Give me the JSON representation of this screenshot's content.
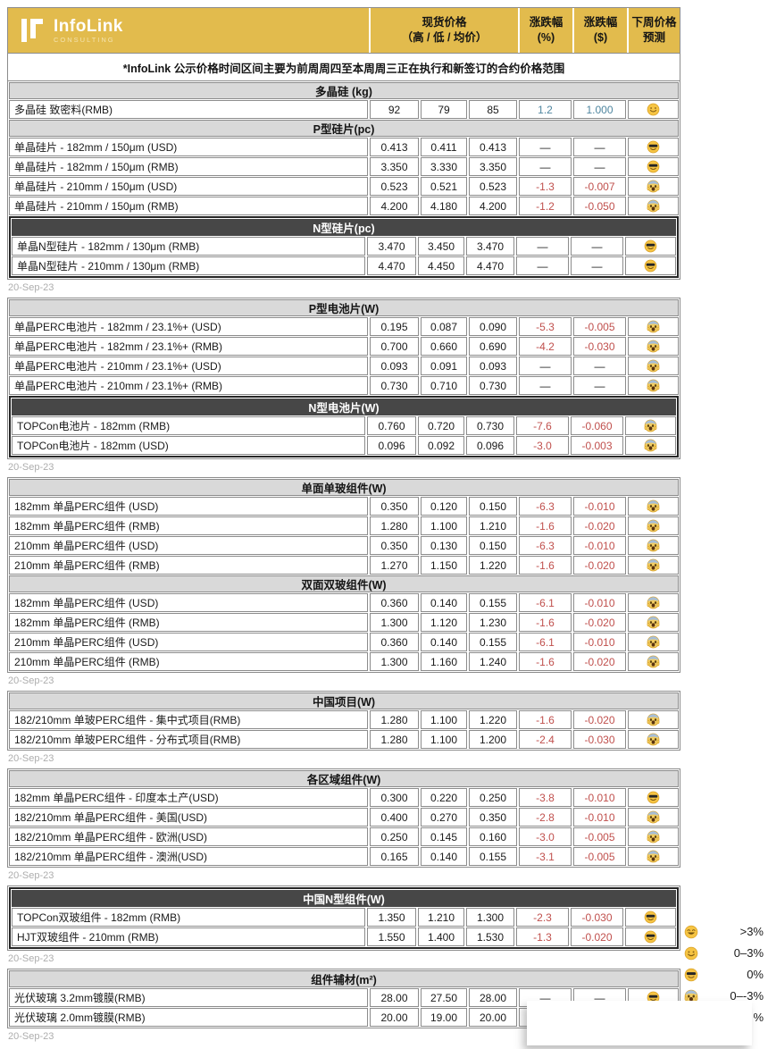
{
  "brand": {
    "name": "InfoLink",
    "subtitle": "CONSULTING"
  },
  "columns": {
    "spot_title": "现货价格",
    "spot_sub": "（高 / 低 / 均价）",
    "pct_title": "涨跌幅",
    "pct_sub": "(%)",
    "usd_title": "涨跌幅",
    "usd_sub": "($)",
    "forecast_title": "下周价格",
    "forecast_sub": "预测"
  },
  "note": "*InfoLink 公示价格时间区间主要为前周周四至本周周三正在执行和新签订的合约价格范围",
  "colors": {
    "accent_yellow": "#E2BB4D",
    "section_light": "#D9D9D9",
    "section_dark": "#474747",
    "up_blue": "#4F86A0",
    "down_red": "#C0504D",
    "border_gray": "#8C8C8C"
  },
  "blocks": [
    {
      "date": "20-Sep-23",
      "sections": [
        {
          "title": "多晶硅 (kg)",
          "style": "light",
          "rows": [
            {
              "name": "多晶硅 致密料(RMB)",
              "high": "92",
              "low": "79",
              "avg": "85",
              "pct": "1.2",
              "usd": "1.000",
              "trend": "up",
              "forecast": "smile"
            }
          ]
        },
        {
          "title": "P型硅片(pc)",
          "style": "light",
          "rows": [
            {
              "name": "单晶硅片 - 182mm / 150μm (USD)",
              "high": "0.413",
              "low": "0.411",
              "avg": "0.413",
              "pct": "—",
              "usd": "—",
              "trend": "flat",
              "forecast": "cool"
            },
            {
              "name": "单晶硅片 - 182mm / 150μm (RMB)",
              "high": "3.350",
              "low": "3.330",
              "avg": "3.350",
              "pct": "—",
              "usd": "—",
              "trend": "flat",
              "forecast": "cool"
            },
            {
              "name": "单晶硅片 - 210mm / 150μm (USD)",
              "high": "0.523",
              "low": "0.521",
              "avg": "0.523",
              "pct": "-1.3",
              "usd": "-0.007",
              "trend": "down",
              "forecast": "scream"
            },
            {
              "name": "单晶硅片 - 210mm / 150μm (RMB)",
              "high": "4.200",
              "low": "4.180",
              "avg": "4.200",
              "pct": "-1.2",
              "usd": "-0.050",
              "trend": "down",
              "forecast": "scream"
            }
          ]
        },
        {
          "title": "N型硅片(pc)",
          "style": "dark",
          "rows": [
            {
              "name": "单晶N型硅片 - 182mm / 130μm (RMB)",
              "high": "3.470",
              "low": "3.450",
              "avg": "3.470",
              "pct": "—",
              "usd": "—",
              "trend": "flat",
              "forecast": "cool"
            },
            {
              "name": "单晶N型硅片 - 210mm / 130μm (RMB)",
              "high": "4.470",
              "low": "4.450",
              "avg": "4.470",
              "pct": "—",
              "usd": "—",
              "trend": "flat",
              "forecast": "cool"
            }
          ]
        }
      ]
    },
    {
      "date": "20-Sep-23",
      "sections": [
        {
          "title": "P型电池片(W)",
          "style": "light",
          "rows": [
            {
              "name": "单晶PERC电池片 - 182mm / 23.1%+ (USD)",
              "high": "0.195",
              "low": "0.087",
              "avg": "0.090",
              "pct": "-5.3",
              "usd": "-0.005",
              "trend": "down",
              "forecast": "scream"
            },
            {
              "name": "单晶PERC电池片 - 182mm / 23.1%+ (RMB)",
              "high": "0.700",
              "low": "0.660",
              "avg": "0.690",
              "pct": "-4.2",
              "usd": "-0.030",
              "trend": "down",
              "forecast": "scream"
            },
            {
              "name": "单晶PERC电池片 - 210mm / 23.1%+ (USD)",
              "high": "0.093",
              "low": "0.091",
              "avg": "0.093",
              "pct": "—",
              "usd": "—",
              "trend": "flat",
              "forecast": "scream"
            },
            {
              "name": "单晶PERC电池片 - 210mm / 23.1%+ (RMB)",
              "high": "0.730",
              "low": "0.710",
              "avg": "0.730",
              "pct": "—",
              "usd": "—",
              "trend": "flat",
              "forecast": "scream"
            }
          ]
        },
        {
          "title": "N型电池片(W)",
          "style": "dark",
          "rows": [
            {
              "name": "TOPCon电池片 - 182mm (RMB)",
              "high": "0.760",
              "low": "0.720",
              "avg": "0.730",
              "pct": "-7.6",
              "usd": "-0.060",
              "trend": "down",
              "forecast": "scream"
            },
            {
              "name": "TOPCon电池片 - 182mm (USD)",
              "high": "0.096",
              "low": "0.092",
              "avg": "0.096",
              "pct": "-3.0",
              "usd": "-0.003",
              "trend": "down",
              "forecast": "scream"
            }
          ]
        }
      ]
    },
    {
      "date": "20-Sep-23",
      "sections": [
        {
          "title": "单面单玻组件(W)",
          "style": "light",
          "rows": [
            {
              "name": "182mm 单晶PERC组件 (USD)",
              "high": "0.350",
              "low": "0.120",
              "avg": "0.150",
              "pct": "-6.3",
              "usd": "-0.010",
              "trend": "down",
              "forecast": "scream"
            },
            {
              "name": "182mm 单晶PERC组件 (RMB)",
              "high": "1.280",
              "low": "1.100",
              "avg": "1.210",
              "pct": "-1.6",
              "usd": "-0.020",
              "trend": "down",
              "forecast": "scream"
            },
            {
              "name": "210mm 单晶PERC组件 (USD)",
              "high": "0.350",
              "low": "0.130",
              "avg": "0.150",
              "pct": "-6.3",
              "usd": "-0.010",
              "trend": "down",
              "forecast": "scream"
            },
            {
              "name": "210mm 单晶PERC组件 (RMB)",
              "high": "1.270",
              "low": "1.150",
              "avg": "1.220",
              "pct": "-1.6",
              "usd": "-0.020",
              "trend": "down",
              "forecast": "scream"
            }
          ]
        },
        {
          "title": "双面双玻组件(W)",
          "style": "light",
          "rows": [
            {
              "name": "182mm 单晶PERC组件 (USD)",
              "high": "0.360",
              "low": "0.140",
              "avg": "0.155",
              "pct": "-6.1",
              "usd": "-0.010",
              "trend": "down",
              "forecast": "scream"
            },
            {
              "name": "182mm 单晶PERC组件 (RMB)",
              "high": "1.300",
              "low": "1.120",
              "avg": "1.230",
              "pct": "-1.6",
              "usd": "-0.020",
              "trend": "down",
              "forecast": "scream"
            },
            {
              "name": "210mm 单晶PERC组件 (USD)",
              "high": "0.360",
              "low": "0.140",
              "avg": "0.155",
              "pct": "-6.1",
              "usd": "-0.010",
              "trend": "down",
              "forecast": "scream"
            },
            {
              "name": "210mm 单晶PERC组件 (RMB)",
              "high": "1.300",
              "low": "1.160",
              "avg": "1.240",
              "pct": "-1.6",
              "usd": "-0.020",
              "trend": "down",
              "forecast": "scream"
            }
          ]
        }
      ]
    },
    {
      "date": "20-Sep-23",
      "sections": [
        {
          "title": "中国项目(W)",
          "style": "light",
          "rows": [
            {
              "name": "182/210mm 单玻PERC组件 - 集中式项目(RMB)",
              "high": "1.280",
              "low": "1.100",
              "avg": "1.220",
              "pct": "-1.6",
              "usd": "-0.020",
              "trend": "down",
              "forecast": "scream"
            },
            {
              "name": "182/210mm 单玻PERC组件 - 分布式项目(RMB)",
              "high": "1.280",
              "low": "1.100",
              "avg": "1.200",
              "pct": "-2.4",
              "usd": "-0.030",
              "trend": "down",
              "forecast": "scream"
            }
          ]
        }
      ]
    },
    {
      "date": "20-Sep-23",
      "sections": [
        {
          "title": "各区域组件(W)",
          "style": "light",
          "rows": [
            {
              "name": "182mm 单晶PERC组件 - 印度本土产(USD)",
              "high": "0.300",
              "low": "0.220",
              "avg": "0.250",
              "pct": "-3.8",
              "usd": "-0.010",
              "trend": "down",
              "forecast": "cool"
            },
            {
              "name": "182/210mm 单晶PERC组件 - 美国(USD)",
              "high": "0.400",
              "low": "0.270",
              "avg": "0.350",
              "pct": "-2.8",
              "usd": "-0.010",
              "trend": "down",
              "forecast": "scream"
            },
            {
              "name": "182/210mm 单晶PERC组件 - 欧洲(USD)",
              "high": "0.250",
              "low": "0.145",
              "avg": "0.160",
              "pct": "-3.0",
              "usd": "-0.005",
              "trend": "down",
              "forecast": "scream"
            },
            {
              "name": "182/210mm 单晶PERC组件 - 澳洲(USD)",
              "high": "0.165",
              "low": "0.140",
              "avg": "0.155",
              "pct": "-3.1",
              "usd": "-0.005",
              "trend": "down",
              "forecast": "scream"
            }
          ]
        }
      ]
    },
    {
      "date": "20-Sep-23",
      "sections": [
        {
          "title": "中国N型组件(W)",
          "style": "dark",
          "rows": [
            {
              "name": "TOPCon双玻组件 - 182mm (RMB)",
              "high": "1.350",
              "low": "1.210",
              "avg": "1.300",
              "pct": "-2.3",
              "usd": "-0.030",
              "trend": "down",
              "forecast": "cool"
            },
            {
              "name": "HJT双玻组件 - 210mm (RMB)",
              "high": "1.550",
              "low": "1.400",
              "avg": "1.530",
              "pct": "-1.3",
              "usd": "-0.020",
              "trend": "down",
              "forecast": "cool"
            }
          ]
        }
      ]
    },
    {
      "date": "20-Sep-23",
      "sections": [
        {
          "title": "组件辅材(m²)",
          "style": "light",
          "rows": [
            {
              "name": "光伏玻璃 3.2mm镀膜(RMB)",
              "high": "28.00",
              "low": "27.50",
              "avg": "28.00",
              "pct": "—",
              "usd": "—",
              "trend": "flat",
              "forecast": "cool"
            },
            {
              "name": "光伏玻璃 2.0mm镀膜(RMB)",
              "high": "20.00",
              "low": "19.00",
              "avg": "20.00",
              "pct": "",
              "usd": "",
              "trend": "flat",
              "forecast": ""
            }
          ]
        }
      ]
    }
  ],
  "legend": [
    {
      "icon": "grin",
      "label": ">3%"
    },
    {
      "icon": "smile",
      "label": "0–3%"
    },
    {
      "icon": "cool",
      "label": "0%"
    },
    {
      "icon": "scream",
      "label": "0–-3%"
    },
    {
      "icon": "",
      "label": "%"
    }
  ]
}
